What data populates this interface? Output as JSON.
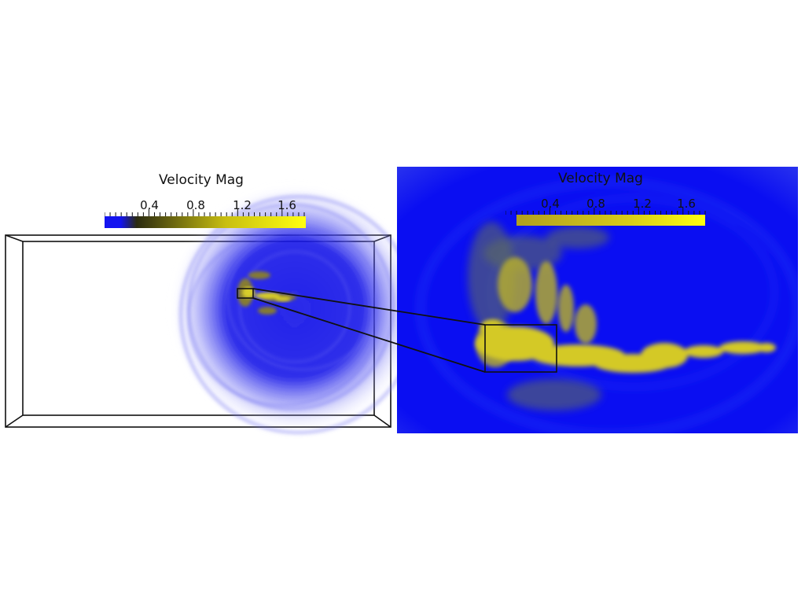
{
  "colorbar": {
    "title": "Velocity Mag",
    "tick_labels": [
      "0.4",
      "0.8",
      "1.2",
      "1.6"
    ],
    "tick_values": [
      0.4,
      0.8,
      1.2,
      1.6
    ],
    "range": [
      0.0,
      1.8
    ],
    "colors": [
      "#1414f0",
      "#2b2b10",
      "#c8be10",
      "#ffff10"
    ]
  },
  "colors": {
    "flow_background": "#0a0ef2",
    "vortex_ring": "#1c1ce6",
    "flow_feature": "#c8c020",
    "outline": "#111111"
  }
}
